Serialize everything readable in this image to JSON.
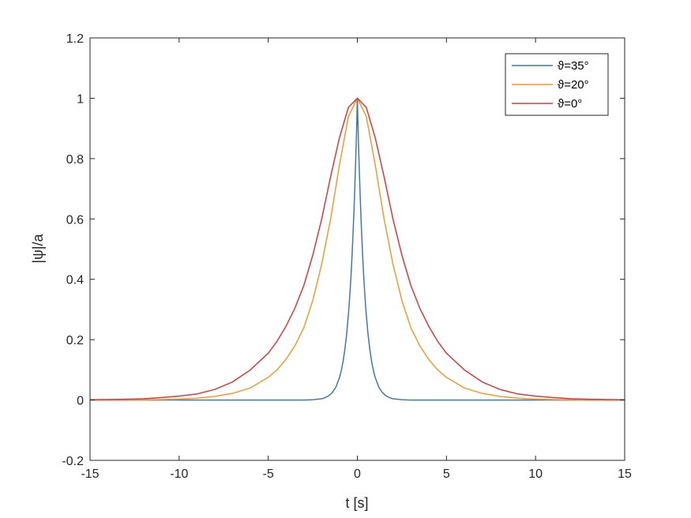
{
  "chart_data": {
    "type": "line",
    "title": "",
    "xlabel": "t [s]",
    "ylabel": "|ψ|/a",
    "xlim": [
      -15,
      15
    ],
    "ylim": [
      -0.2,
      1.2
    ],
    "xticks": [
      -15,
      -10,
      -5,
      0,
      5,
      10,
      15
    ],
    "yticks": [
      -0.2,
      0,
      0.2,
      0.4,
      0.6,
      0.8,
      1.0,
      1.2
    ],
    "xtick_labels": [
      "-15",
      "-10",
      "-5",
      "0",
      "5",
      "10",
      "15"
    ],
    "ytick_labels": [
      "-0.2",
      "0",
      "0.2",
      "0.4",
      "0.6",
      "0.8",
      "1",
      "1.2"
    ],
    "grid": false,
    "legend_position": "top-right",
    "series": [
      {
        "name": "ϑ=35°",
        "color": "#4477aa",
        "x": [
          -15,
          -5,
          -3,
          -2.5,
          -2,
          -1.8,
          -1.6,
          -1.4,
          -1.2,
          -1.0,
          -0.9,
          -0.8,
          -0.7,
          -0.6,
          -0.5,
          -0.45,
          -0.4,
          -0.35,
          -0.3,
          -0.25,
          -0.2,
          -0.15,
          -0.1,
          -0.05,
          0,
          0.05,
          0.1,
          0.15,
          0.2,
          0.25,
          0.3,
          0.35,
          0.4,
          0.45,
          0.5,
          0.6,
          0.7,
          0.8,
          0.9,
          1.0,
          1.2,
          1.4,
          1.6,
          1.8,
          2,
          2.5,
          3,
          5,
          15
        ],
        "y": [
          0,
          0,
          0,
          0.001,
          0.004,
          0.008,
          0.014,
          0.025,
          0.043,
          0.075,
          0.098,
          0.128,
          0.168,
          0.218,
          0.284,
          0.323,
          0.368,
          0.418,
          0.475,
          0.54,
          0.612,
          0.692,
          0.781,
          0.878,
          1.0,
          0.878,
          0.781,
          0.692,
          0.612,
          0.54,
          0.475,
          0.418,
          0.368,
          0.323,
          0.284,
          0.218,
          0.168,
          0.128,
          0.098,
          0.075,
          0.043,
          0.025,
          0.014,
          0.008,
          0.004,
          0.001,
          0,
          0,
          0
        ]
      },
      {
        "name": "ϑ=20°",
        "color": "#f39a2c",
        "x": [
          -15,
          -14,
          -13,
          -12,
          -11,
          -10,
          -9,
          -8,
          -7,
          -6,
          -5,
          -4.5,
          -4,
          -3.5,
          -3,
          -2.5,
          -2,
          -1.5,
          -1,
          -0.5,
          0,
          0.5,
          1,
          1.5,
          2,
          2.5,
          3,
          3.5,
          4,
          4.5,
          5,
          6,
          7,
          8,
          9,
          10,
          11,
          12,
          13,
          14,
          15
        ],
        "y": [
          0.0,
          0.0003,
          0.0005,
          0.0009,
          0.0016,
          0.003,
          0.006,
          0.012,
          0.022,
          0.04,
          0.075,
          0.1,
          0.135,
          0.18,
          0.24,
          0.33,
          0.45,
          0.6,
          0.78,
          0.94,
          1.0,
          0.94,
          0.78,
          0.6,
          0.45,
          0.33,
          0.24,
          0.18,
          0.135,
          0.1,
          0.075,
          0.04,
          0.022,
          0.012,
          0.006,
          0.003,
          0.0016,
          0.0009,
          0.0005,
          0.0003,
          0.0
        ]
      },
      {
        "name": "ϑ=0°",
        "color": "#d93a3a",
        "x": [
          -15,
          -14,
          -13,
          -12,
          -11,
          -10,
          -9,
          -8,
          -7,
          -6,
          -5,
          -4.5,
          -4,
          -3.5,
          -3,
          -2.5,
          -2,
          -1.5,
          -1,
          -0.5,
          0,
          0.5,
          1,
          1.5,
          2,
          2.5,
          3,
          3.5,
          4,
          4.5,
          5,
          6,
          7,
          8,
          9,
          10,
          11,
          12,
          13,
          14,
          15
        ],
        "y": [
          0.001,
          0.0016,
          0.0026,
          0.004,
          0.008,
          0.013,
          0.02,
          0.035,
          0.06,
          0.1,
          0.155,
          0.195,
          0.245,
          0.305,
          0.38,
          0.48,
          0.6,
          0.74,
          0.87,
          0.97,
          1.0,
          0.97,
          0.87,
          0.74,
          0.6,
          0.48,
          0.38,
          0.305,
          0.245,
          0.195,
          0.155,
          0.1,
          0.06,
          0.035,
          0.02,
          0.013,
          0.008,
          0.004,
          0.0026,
          0.0016,
          0.001
        ]
      }
    ]
  }
}
